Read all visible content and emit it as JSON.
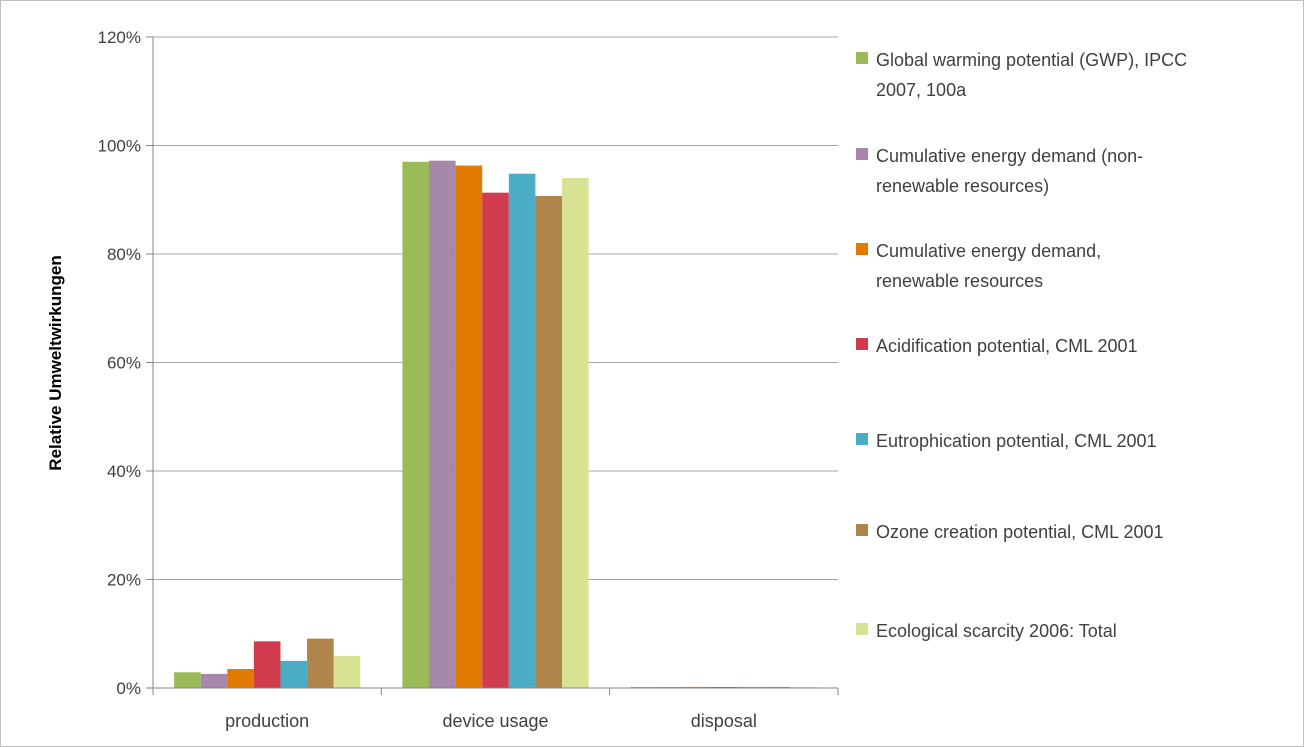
{
  "chart_data": {
    "type": "bar",
    "ylabel": "Relative Umweltwirkungen",
    "xlabel": "",
    "ylim": [
      0,
      120
    ],
    "y_ticks": [
      0,
      20,
      40,
      60,
      80,
      100,
      120
    ],
    "y_tick_labels": [
      "0%",
      "20%",
      "40%",
      "60%",
      "80%",
      "100%",
      "120%"
    ],
    "y_unit": "%",
    "grid": true,
    "legend_position": "right",
    "categories": [
      "production",
      "device usage",
      "disposal"
    ],
    "series": [
      {
        "name": "Global warming potential (GWP), IPCC 2007, 100a",
        "legend_lines": [
          "Global warming potential (GWP), IPCC",
          "2007, 100a"
        ],
        "color": "#9bbb59",
        "values": [
          2.9,
          97.0,
          0.15
        ]
      },
      {
        "name": "Cumulative energy demand (non-renewable resources)",
        "legend_lines": [
          "Cumulative energy demand (non-",
          "renewable resources)"
        ],
        "color": "#a788aa",
        "values": [
          2.6,
          97.2,
          0.15
        ]
      },
      {
        "name": "Cumulative energy demand, renewable resources",
        "legend_lines": [
          "Cumulative energy demand,",
          "renewable resources"
        ],
        "color": "#e07b00",
        "values": [
          3.5,
          96.3,
          0.2
        ]
      },
      {
        "name": "Acidification potential, CML 2001",
        "legend_lines": [
          "Acidification potential, CML 2001"
        ],
        "color": "#d13b4e",
        "values": [
          8.6,
          91.3,
          0.15
        ]
      },
      {
        "name": "Eutrophication potential, CML 2001",
        "legend_lines": [
          "Eutrophication potential, CML 2001"
        ],
        "color": "#4bacc6",
        "values": [
          5.0,
          94.8,
          0.2
        ]
      },
      {
        "name": "Ozone creation potential, CML 2001",
        "legend_lines": [
          "Ozone creation potential, CML 2001"
        ],
        "color": "#b0854c",
        "values": [
          9.1,
          90.7,
          0.2
        ]
      },
      {
        "name": "Ecological scarcity 2006: Total",
        "legend_lines": [
          "Ecological scarcity 2006: Total"
        ],
        "color": "#d9e294",
        "values": [
          5.9,
          94.0,
          0.1
        ]
      }
    ],
    "styles": {
      "grid_color": "#a6a6a6",
      "axis_color": "#868686",
      "eutrophication_color_actual": "#4bacc6"
    }
  }
}
